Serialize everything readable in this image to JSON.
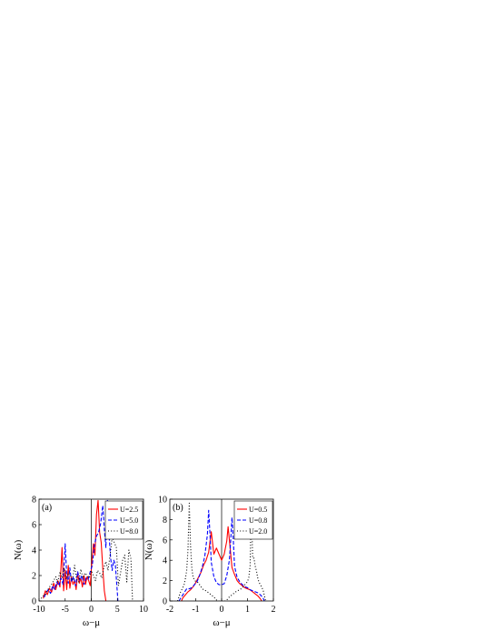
{
  "chart_data": [
    {
      "type": "line",
      "panel_label": "(a)",
      "xlabel": "ω−μ",
      "ylabel": "N(ω)",
      "xlim": [
        -10,
        10
      ],
      "ylim": [
        0,
        8
      ],
      "xticks": [
        -10,
        -5,
        0,
        5,
        10
      ],
      "xtick_labels": [
        "-10",
        "-5",
        "0",
        "5",
        "10"
      ],
      "yticks": [
        0,
        2,
        4,
        6,
        8
      ],
      "ytick_labels": [
        "0",
        "2",
        "4",
        "6",
        "8"
      ],
      "grid": false,
      "vertical_reference_line": 0,
      "legend_position": "top-right",
      "series": [
        {
          "name": "U=2.5",
          "color": "#ff0000",
          "style": "solid",
          "x": [
            -9.2,
            -8.8,
            -8.4,
            -8.0,
            -7.6,
            -7.2,
            -6.8,
            -6.4,
            -6.0,
            -5.6,
            -5.3,
            -5.0,
            -4.7,
            -4.4,
            -4.1,
            -3.8,
            -3.5,
            -3.2,
            -2.9,
            -2.6,
            -2.3,
            -2.0,
            -1.7,
            -1.4,
            -1.1,
            -0.8,
            -0.5,
            -0.2,
            0.1,
            0.4,
            0.7,
            1.0,
            1.3,
            1.6,
            1.9,
            2.2,
            2.5,
            2.8
          ],
          "y": [
            0.2,
            0.8,
            0.5,
            1.0,
            0.7,
            1.4,
            0.9,
            1.6,
            1.1,
            4.2,
            0.8,
            2.4,
            0.9,
            2.8,
            1.0,
            1.9,
            1.3,
            1.6,
            0.9,
            2.2,
            1.4,
            1.8,
            1.1,
            2.0,
            1.3,
            1.9,
            1.6,
            1.2,
            3.0,
            4.5,
            3.6,
            6.8,
            7.9,
            5.4,
            4.6,
            2.6,
            0.8,
            0
          ]
        },
        {
          "name": "U=5.0",
          "color": "#0000ff",
          "style": "dashed",
          "x": [
            -9.0,
            -8.6,
            -8.2,
            -7.8,
            -7.4,
            -7.0,
            -6.6,
            -6.2,
            -5.8,
            -5.4,
            -5.0,
            -4.7,
            -4.4,
            -4.1,
            -3.8,
            -3.4,
            -3.0,
            -2.6,
            -2.2,
            -1.8,
            -1.4,
            -1.0,
            -0.6,
            -0.2,
            0.2,
            0.6,
            1.0,
            1.4,
            1.8,
            2.2,
            2.5,
            2.8,
            3.1,
            3.4,
            3.7,
            4.0,
            4.3,
            4.6,
            4.9,
            5.1
          ],
          "y": [
            0.3,
            0.7,
            0.9,
            0.6,
            1.2,
            0.9,
            1.5,
            1.2,
            1.8,
            1.3,
            4.5,
            2.0,
            1.4,
            2.6,
            1.5,
            1.9,
            1.2,
            2.3,
            1.6,
            2.0,
            1.3,
            1.8,
            1.7,
            2.3,
            2.8,
            4.4,
            5.1,
            5.4,
            6.1,
            7.5,
            5.6,
            4.2,
            7.9,
            5.2,
            3.4,
            2.4,
            3.2,
            2.9,
            1.2,
            0
          ]
        },
        {
          "name": "U=8.0",
          "color": "#000000",
          "style": "dotted",
          "x": [
            -9.6,
            -9.2,
            -8.8,
            -8.4,
            -8.0,
            -7.6,
            -7.2,
            -6.8,
            -6.4,
            -6.0,
            -5.6,
            -5.2,
            -4.8,
            -4.4,
            -4.0,
            -3.6,
            -3.2,
            -2.8,
            -2.4,
            -2.0,
            -1.6,
            -1.2,
            -0.8,
            -0.4,
            0.0,
            0.4,
            0.8,
            1.2,
            1.6,
            2.0,
            2.4,
            2.8,
            3.2,
            3.6,
            4.0,
            4.4,
            4.8,
            5.2,
            5.6,
            6.0,
            6.4,
            6.8,
            7.2,
            7.6,
            7.9
          ],
          "y": [
            0.2,
            0.4,
            0.5,
            0.8,
            1.1,
            1.3,
            1.6,
            1.9,
            1.5,
            2.3,
            1.8,
            2.6,
            1.7,
            2.2,
            2.0,
            1.6,
            2.8,
            1.7,
            1.5,
            2.5,
            1.8,
            2.2,
            2.0,
            1.8,
            2.4,
            2.0,
            1.6,
            2.4,
            2.2,
            1.8,
            2.6,
            3.1,
            2.4,
            3.6,
            5.0,
            4.6,
            4.2,
            1.2,
            2.2,
            3.2,
            3.6,
            1.5,
            4.0,
            3.3,
            0
          ]
        }
      ],
      "legend": [
        "U=2.5",
        "U=5.0",
        "U=8.0"
      ]
    },
    {
      "type": "line",
      "panel_label": "(b)",
      "xlabel": "ω−μ",
      "ylabel": "N(ω)",
      "xlim": [
        -2,
        2
      ],
      "ylim": [
        0,
        10
      ],
      "xticks": [
        -2,
        -1,
        0,
        1,
        2
      ],
      "xtick_labels": [
        "-2",
        "-1",
        "0",
        "1",
        "2"
      ],
      "yticks": [
        0,
        2,
        4,
        6,
        8,
        10
      ],
      "ytick_labels": [
        "0",
        "2",
        "4",
        "6",
        "8",
        "10"
      ],
      "grid": false,
      "vertical_reference_line": 0,
      "legend_position": "top-right",
      "series": [
        {
          "name": "U=0.5",
          "color": "#ff0000",
          "style": "solid",
          "x": [
            -1.55,
            -1.5,
            -1.4,
            -1.3,
            -1.2,
            -1.1,
            -1.0,
            -0.9,
            -0.8,
            -0.7,
            -0.6,
            -0.5,
            -0.4,
            -0.3,
            -0.2,
            -0.1,
            0.0,
            0.1,
            0.2,
            0.25,
            0.3,
            0.4,
            0.5,
            0.6,
            0.7,
            0.8,
            0.9,
            1.0,
            1.1,
            1.2,
            1.3,
            1.4,
            1.5,
            1.55
          ],
          "y": [
            0,
            0.3,
            0.6,
            0.9,
            1.1,
            1.4,
            1.8,
            2.3,
            2.8,
            3.5,
            4.0,
            4.8,
            6.8,
            4.6,
            5.2,
            4.6,
            4.0,
            4.6,
            5.9,
            7.3,
            6.0,
            3.3,
            2.6,
            2.0,
            1.7,
            1.5,
            1.3,
            1.2,
            1.1,
            0.9,
            0.7,
            0.5,
            0.2,
            0
          ]
        },
        {
          "name": "U=0.8",
          "color": "#0000ff",
          "style": "dashed",
          "x": [
            -1.65,
            -1.55,
            -1.45,
            -1.35,
            -1.25,
            -1.15,
            -1.05,
            -0.95,
            -0.85,
            -0.75,
            -0.65,
            -0.55,
            -0.5,
            -0.45,
            -0.4,
            -0.3,
            -0.2,
            -0.1,
            0.0,
            0.1,
            0.2,
            0.3,
            0.35,
            0.4,
            0.45,
            0.5,
            0.6,
            0.7,
            0.8,
            0.9,
            1.0,
            1.1,
            1.2,
            1.3,
            1.4,
            1.5,
            1.6,
            1.65
          ],
          "y": [
            0,
            0.4,
            0.8,
            1.2,
            1.2,
            1.3,
            1.6,
            1.9,
            2.5,
            3.3,
            4.4,
            6.5,
            8.9,
            6.6,
            3.8,
            2.4,
            1.8,
            1.6,
            1.6,
            1.7,
            2.5,
            4.0,
            5.9,
            8.2,
            6.1,
            3.4,
            2.3,
            1.9,
            1.6,
            1.4,
            1.3,
            1.1,
            1.0,
            0.9,
            0.8,
            0.6,
            0.3,
            0
          ]
        },
        {
          "name": "U=2.0",
          "color": "#000000",
          "style": "dotted",
          "x": [
            -1.7,
            -1.6,
            -1.5,
            -1.45,
            -1.4,
            -1.35,
            -1.3,
            -1.25,
            -1.2,
            -1.15,
            -1.1,
            -1.0,
            -0.9,
            -0.8,
            -0.7,
            -0.6,
            -0.5,
            -0.4,
            -0.3,
            -0.2,
            -0.15,
            -0.1,
            0.0,
            0.1,
            0.15,
            0.2,
            0.3,
            0.4,
            0.5,
            0.6,
            0.7,
            0.8,
            0.9,
            1.0,
            1.05,
            1.1,
            1.15,
            1.2,
            1.25,
            1.3,
            1.35,
            1.4,
            1.45,
            1.5,
            1.6,
            1.7
          ],
          "y": [
            0,
            0.8,
            1.3,
            1.6,
            2.2,
            3.0,
            5.0,
            9.6,
            5.4,
            3.2,
            2.3,
            1.9,
            1.8,
            1.4,
            1.1,
            1.0,
            0.8,
            0.6,
            0.4,
            0.1,
            0,
            0,
            0,
            0,
            0,
            0.1,
            0.4,
            0.6,
            0.8,
            1.0,
            1.1,
            1.3,
            1.6,
            1.9,
            2.3,
            3.4,
            9.5,
            4.2,
            4.2,
            3.4,
            2.9,
            2.2,
            1.8,
            1.6,
            1.1,
            0
          ]
        }
      ],
      "legend": [
        "U=0.5",
        "U=0.8",
        "U=2.0"
      ]
    }
  ]
}
